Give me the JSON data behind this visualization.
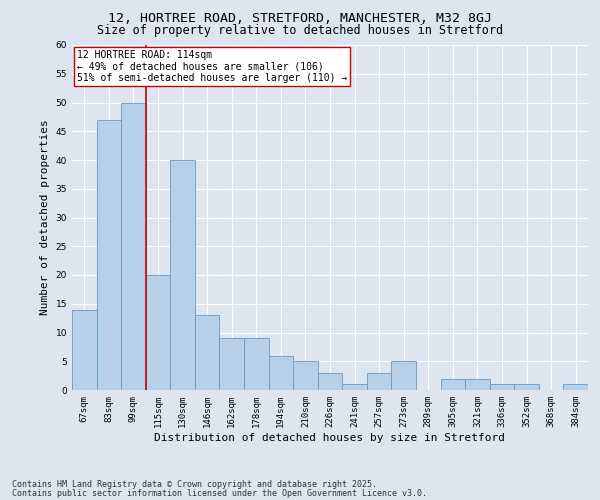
{
  "title_line1": "12, HORTREE ROAD, STRETFORD, MANCHESTER, M32 8GJ",
  "title_line2": "Size of property relative to detached houses in Stretford",
  "xlabel": "Distribution of detached houses by size in Stretford",
  "ylabel": "Number of detached properties",
  "footer_line1": "Contains HM Land Registry data © Crown copyright and database right 2025.",
  "footer_line2": "Contains public sector information licensed under the Open Government Licence v3.0.",
  "categories": [
    "67sqm",
    "83sqm",
    "99sqm",
    "115sqm",
    "130sqm",
    "146sqm",
    "162sqm",
    "178sqm",
    "194sqm",
    "210sqm",
    "226sqm",
    "241sqm",
    "257sqm",
    "273sqm",
    "289sqm",
    "305sqm",
    "321sqm",
    "336sqm",
    "352sqm",
    "368sqm",
    "384sqm"
  ],
  "values": [
    14,
    47,
    50,
    20,
    40,
    13,
    9,
    9,
    6,
    5,
    3,
    1,
    3,
    5,
    0,
    2,
    2,
    1,
    1,
    0,
    1
  ],
  "bar_color": "#b8cfe8",
  "bar_edge_color": "#6899c4",
  "vline_x_index": 2,
  "vline_color": "#cc0000",
  "annotation_text": "12 HORTREE ROAD: 114sqm\n← 49% of detached houses are smaller (106)\n51% of semi-detached houses are larger (110) →",
  "annotation_box_color": "#ffffff",
  "annotation_box_edge": "#cc0000",
  "ylim": [
    0,
    60
  ],
  "yticks": [
    0,
    5,
    10,
    15,
    20,
    25,
    30,
    35,
    40,
    45,
    50,
    55,
    60
  ],
  "bg_color": "#dde5f0",
  "plot_bg_color": "#dde5f0",
  "grid_color": "#ffffff",
  "title_fontsize": 9.5,
  "subtitle_fontsize": 8.5,
  "axis_label_fontsize": 8,
  "tick_fontsize": 6.5,
  "annotation_fontsize": 7,
  "footer_fontsize": 6
}
